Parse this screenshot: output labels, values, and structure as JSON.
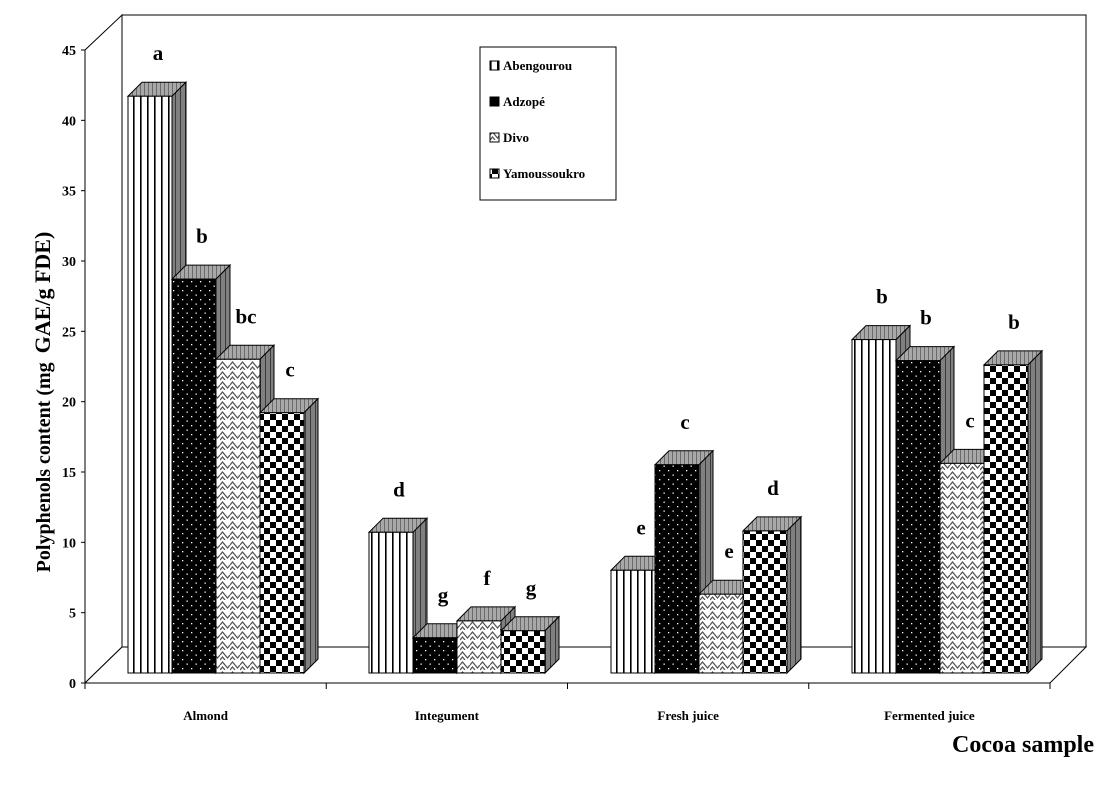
{
  "chart_data": {
    "type": "bar",
    "categories": [
      "Almond",
      "Integument",
      "Fresh juice",
      "Fermented juice"
    ],
    "series": [
      {
        "name": "Abengourou",
        "values": [
          41.5,
          10.5,
          7.8,
          24.2
        ],
        "labels": [
          "a",
          "d",
          "e",
          "b"
        ],
        "pattern": "vlines"
      },
      {
        "name": "Adzopé",
        "values": [
          28.5,
          3.0,
          15.3,
          22.7
        ],
        "labels": [
          "b",
          "g",
          "c",
          "b"
        ],
        "pattern": "dots"
      },
      {
        "name": "Divo",
        "values": [
          22.8,
          4.2,
          6.1,
          15.4
        ],
        "labels": [
          "bc",
          "f",
          "e",
          "c"
        ],
        "pattern": "zigzag"
      },
      {
        "name": "Yamoussoukro",
        "values": [
          19.0,
          3.5,
          10.6,
          22.4
        ],
        "labels": [
          "c",
          "g",
          "d",
          "b"
        ],
        "pattern": "checker"
      }
    ],
    "ylabel_prefix": "Polyphenols content (mg",
    "ylabel_suffix": "GAE/g FDE)",
    "xlabel": "Cocoa sample",
    "ylim": [
      0,
      45
    ],
    "yticks": [
      0,
      5,
      10,
      15,
      20,
      25,
      30,
      35,
      40,
      45
    ],
    "legend_position": "top-center",
    "grid": false
  }
}
